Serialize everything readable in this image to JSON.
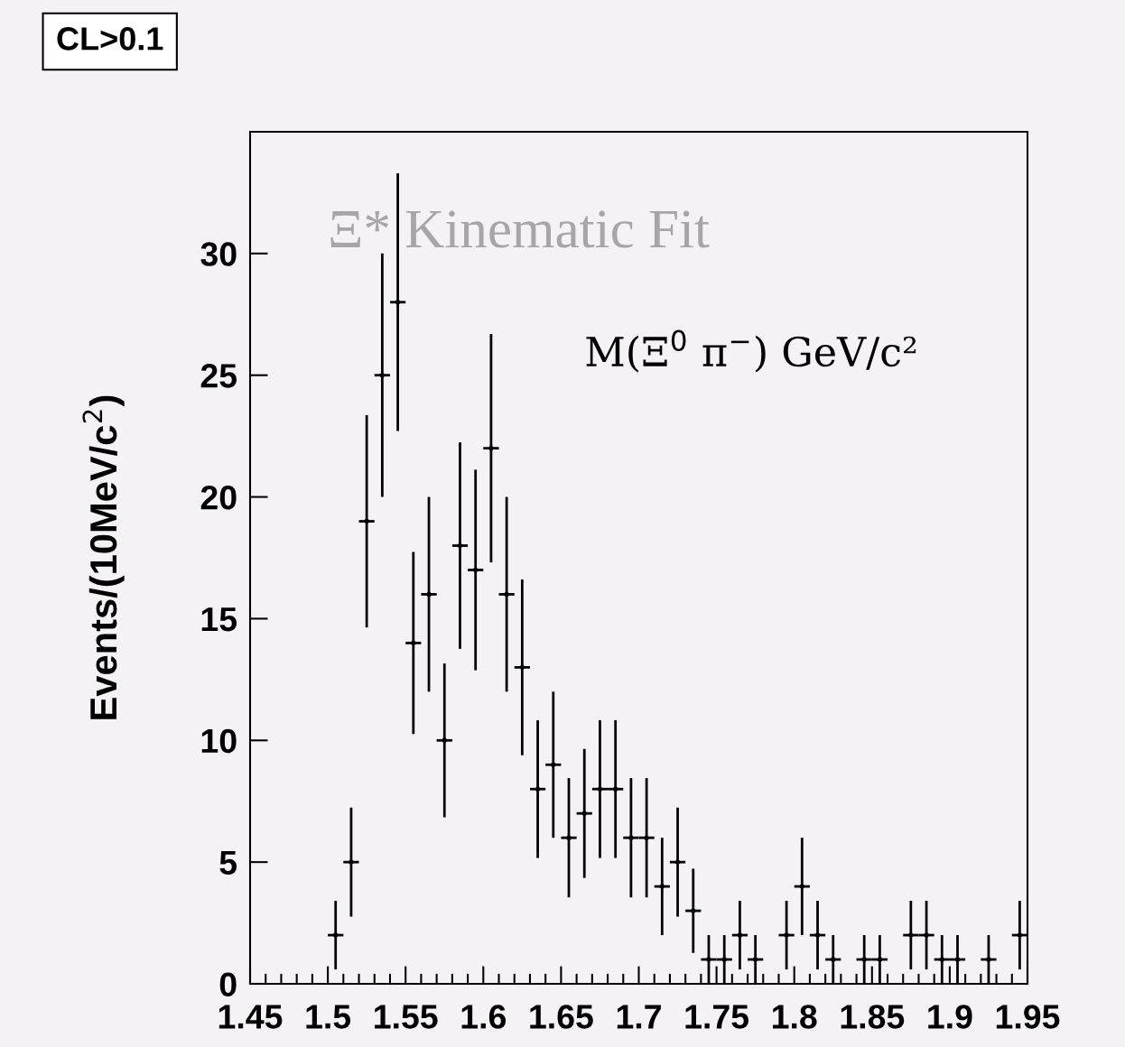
{
  "chart_data": {
    "type": "scatter",
    "ylabel": "Events/(10MeV/c$^{2}$)",
    "annotations": [
      "CL>0.1",
      "Ξ* Kinematic Fit",
      "M(Ξ$^{0}$ π$^{−}$) GeV/c²"
    ],
    "x": [
      1.505,
      1.515,
      1.525,
      1.535,
      1.545,
      1.555,
      1.565,
      1.575,
      1.585,
      1.595,
      1.605,
      1.615,
      1.625,
      1.635,
      1.645,
      1.655,
      1.665,
      1.675,
      1.685,
      1.695,
      1.705,
      1.715,
      1.725,
      1.735,
      1.745,
      1.755,
      1.765,
      1.775,
      1.795,
      1.805,
      1.815,
      1.825,
      1.845,
      1.855,
      1.875,
      1.885,
      1.895,
      1.905,
      1.925,
      1.945
    ],
    "values": [
      2,
      5,
      19,
      25,
      28,
      14,
      16,
      10,
      18,
      17,
      22,
      16,
      13,
      8,
      9,
      6,
      7,
      8,
      8,
      6,
      6,
      4,
      5,
      3,
      1,
      1,
      2,
      1,
      2,
      4,
      2,
      1,
      1,
      1,
      2,
      2,
      1,
      1,
      1,
      2
    ],
    "errors": [
      1.41,
      2.24,
      4.36,
      5,
      5.29,
      3.74,
      4,
      3.16,
      4.24,
      4.12,
      4.69,
      4,
      3.61,
      2.83,
      3,
      2.45,
      2.65,
      2.83,
      2.83,
      2.45,
      2.45,
      2,
      2.24,
      1.73,
      1,
      1,
      1.41,
      1,
      1.41,
      2,
      1.41,
      1,
      1,
      1,
      1.41,
      1.41,
      1,
      1,
      1,
      1.41
    ],
    "xerrors": [
      0.005,
      0.005,
      0.005,
      0.005,
      0.005,
      0.005,
      0.005,
      0.005,
      0.005,
      0.005,
      0.005,
      0.005,
      0.005,
      0.005,
      0.005,
      0.005,
      0.005,
      0.005,
      0.005,
      0.005,
      0.005,
      0.005,
      0.005,
      0.005,
      0.005,
      0.005,
      0.005,
      0.005,
      0.005,
      0.005,
      0.005,
      0.005,
      0.005,
      0.005,
      0.005,
      0.005,
      0.005,
      0.005,
      0.005,
      0.005
    ],
    "color": "#000000",
    "marker": "circle",
    "xlim": [
      1.45,
      1.95
    ],
    "xticks": [
      1.45,
      1.5,
      1.55,
      1.6,
      1.65,
      1.7,
      1.75,
      1.8,
      1.85,
      1.9,
      1.95
    ],
    "ylim": [
      0,
      35
    ],
    "yticks": [
      0,
      5,
      10,
      15,
      20,
      25,
      30
    ],
    "grid": false,
    "legend": false
  }
}
